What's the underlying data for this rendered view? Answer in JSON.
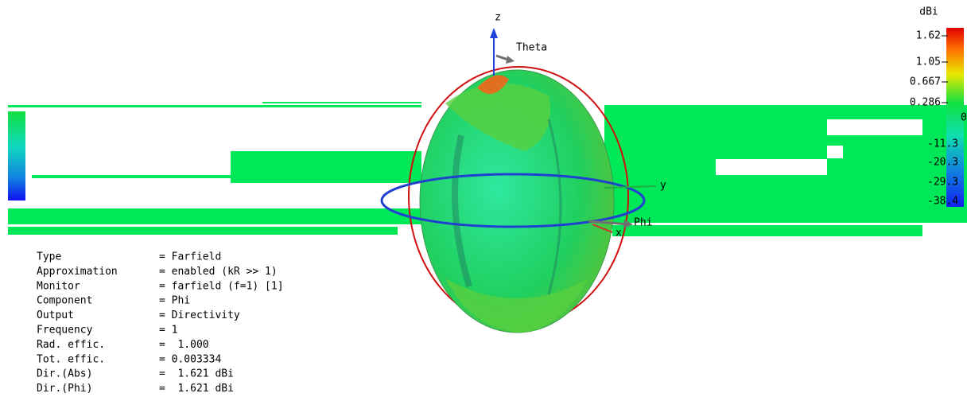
{
  "axes": {
    "z": "z",
    "theta": "Theta",
    "y": "y",
    "phi": "Phi",
    "x": "x"
  },
  "colorbar": {
    "unit": "dBi",
    "labels": [
      "1.62",
      "1.05",
      "0.667",
      "0.286",
      "0",
      "-11.3",
      "-20.3",
      "-29.3",
      "-38.4"
    ]
  },
  "info": {
    "rows": [
      [
        "Type",
        "= Farfield"
      ],
      [
        "Approximation",
        "= enabled (kR >> 1)"
      ],
      [
        "Monitor",
        "= farfield (f=1) [1]"
      ],
      [
        "Component",
        "= Phi"
      ],
      [
        "Output",
        "= Directivity"
      ],
      [
        "Frequency",
        "= 1"
      ],
      [
        "Rad. effic.",
        "=  1.000"
      ],
      [
        "Tot. effic.",
        "= 0.003334"
      ],
      [
        "Dir.(Abs)",
        "=  1.621 dBi"
      ],
      [
        "Dir.(Phi)",
        "=  1.621 dBi"
      ]
    ]
  }
}
